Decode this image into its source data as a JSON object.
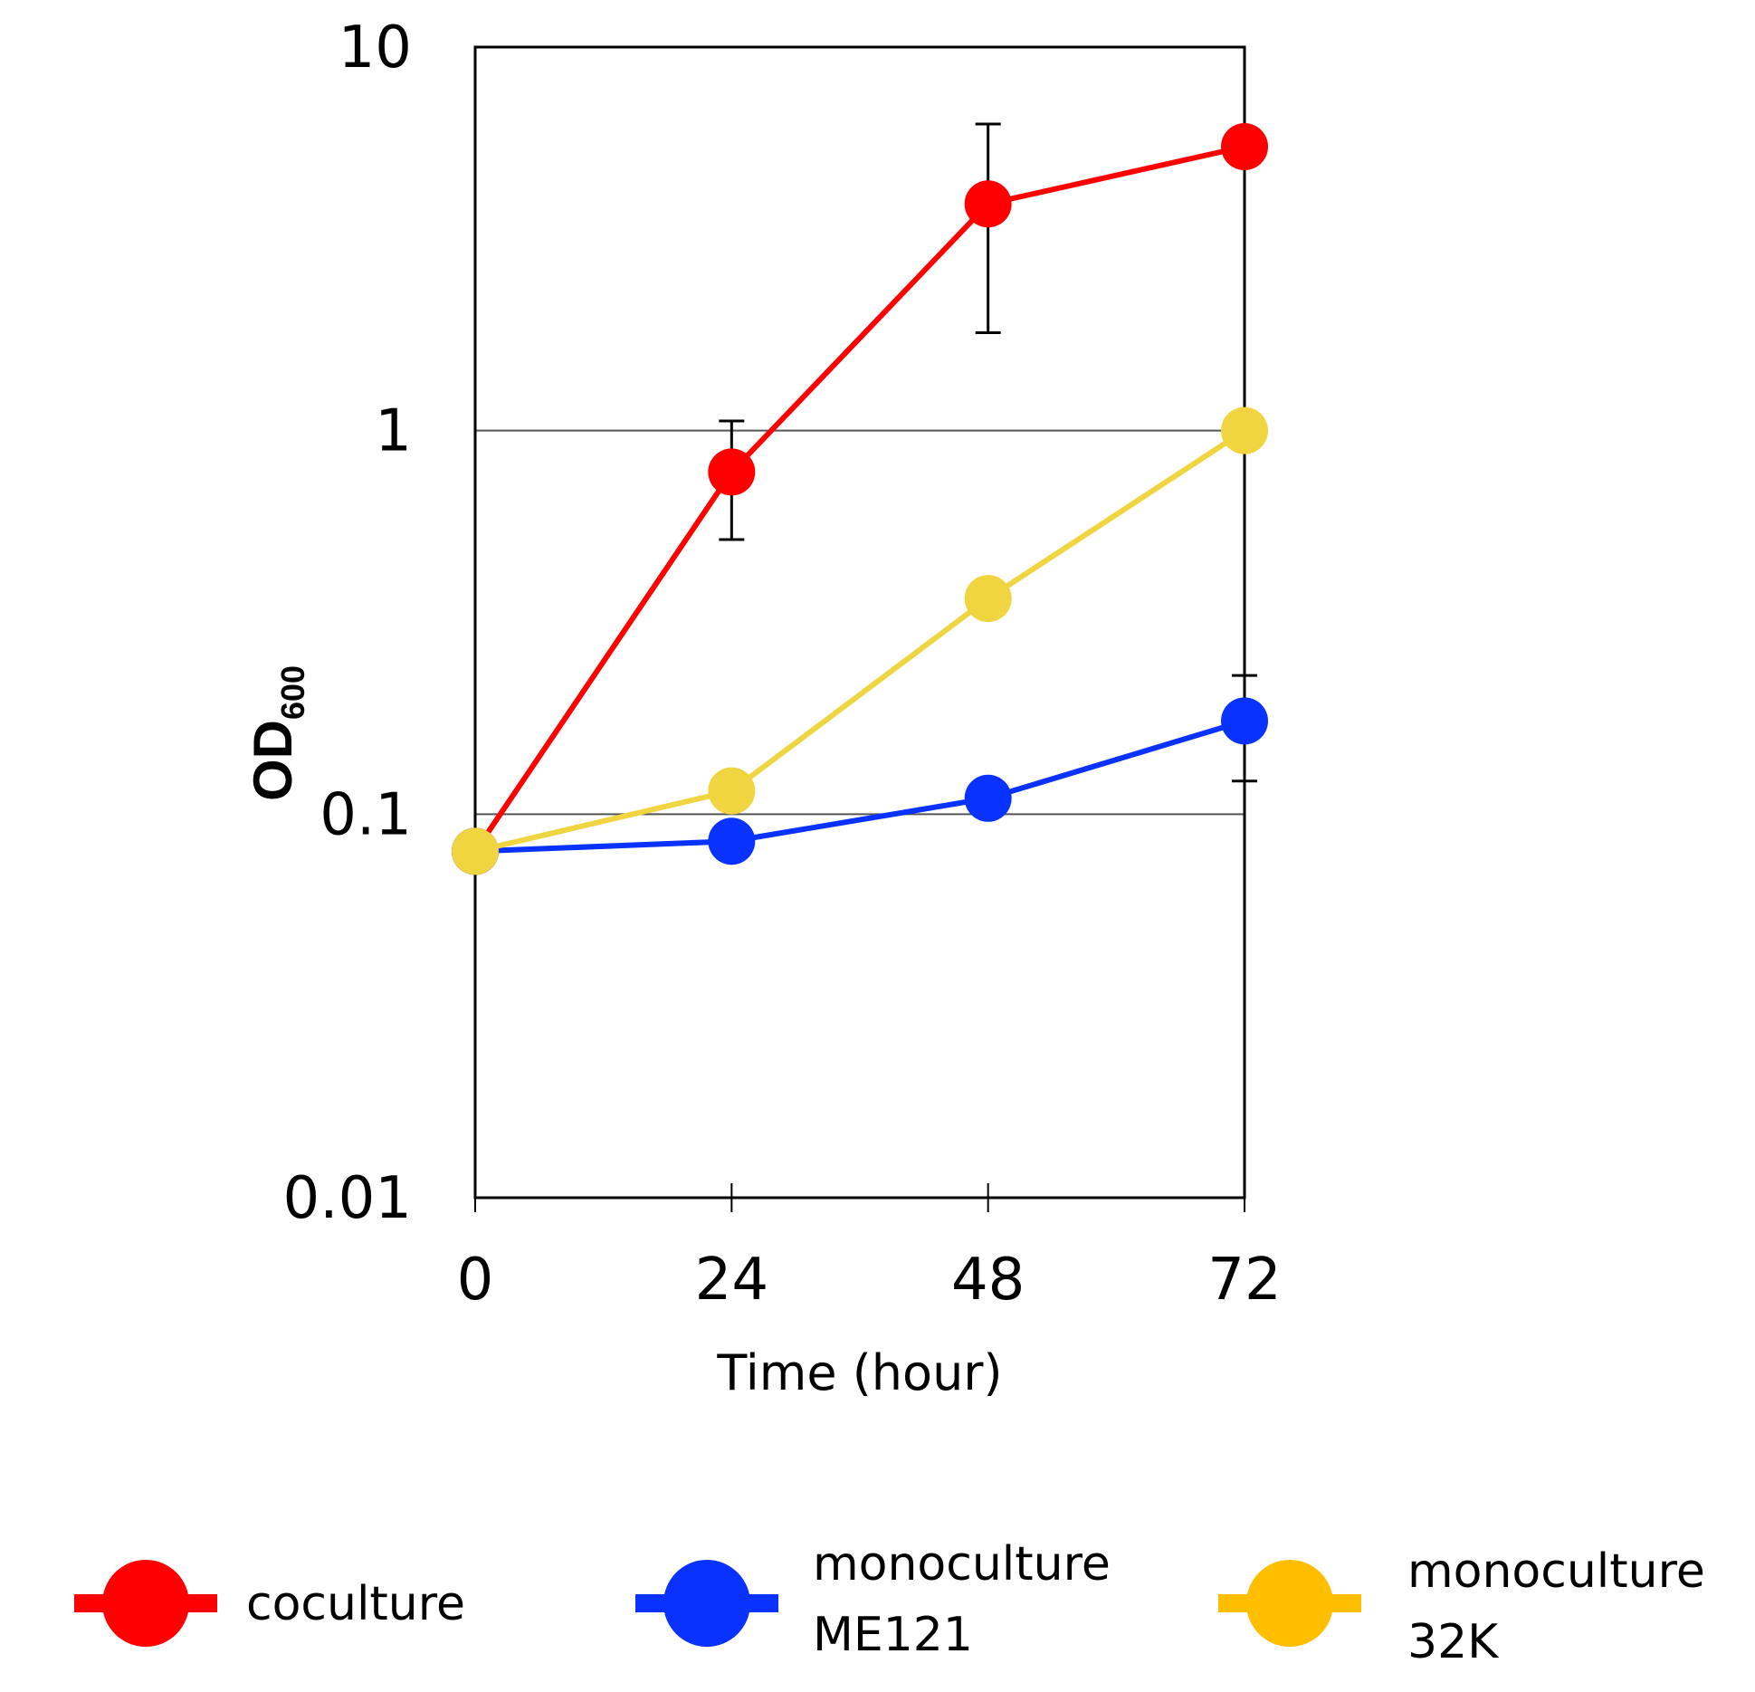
{
  "chart_data": {
    "type": "line",
    "title": "",
    "xlabel": "Time (hour)",
    "ylabel_main": "OD",
    "ylabel_sub": "600",
    "y_scale": "log",
    "ylim": [
      0.01,
      10
    ],
    "xlim": [
      0,
      72
    ],
    "x": [
      0,
      24,
      48,
      72
    ],
    "x_ticks": [
      "0",
      "24",
      "48",
      "72"
    ],
    "y_ticks": [
      "0.01",
      "0.1",
      "1",
      "10"
    ],
    "y_tick_values": [
      0.01,
      0.1,
      1,
      10
    ],
    "gridlines_y": [
      0.1,
      1
    ],
    "legend_position": "bottom",
    "series": [
      {
        "name": "coculture",
        "color": "#ff0000",
        "values": [
          0.08,
          0.78,
          3.9,
          5.5
        ],
        "err_low": [
          null,
          0.52,
          1.8,
          null
        ],
        "err_high": [
          null,
          1.06,
          6.3,
          null
        ]
      },
      {
        "name_line1": "monoculture",
        "name_line2": "ME121",
        "color": "#0a32ff",
        "values": [
          0.08,
          0.085,
          0.11,
          0.175
        ],
        "err_low": [
          null,
          null,
          0.1,
          0.122
        ],
        "err_high": [
          null,
          null,
          0.12,
          0.23
        ]
      },
      {
        "name_line1": "monoculture",
        "name_line2": "32K",
        "color": "#f0d440",
        "legend_color": "#ffbf00",
        "values": [
          0.08,
          0.115,
          0.365,
          1.0
        ],
        "err_low": [
          null,
          null,
          null,
          null
        ],
        "err_high": [
          null,
          null,
          null,
          null
        ]
      }
    ]
  }
}
